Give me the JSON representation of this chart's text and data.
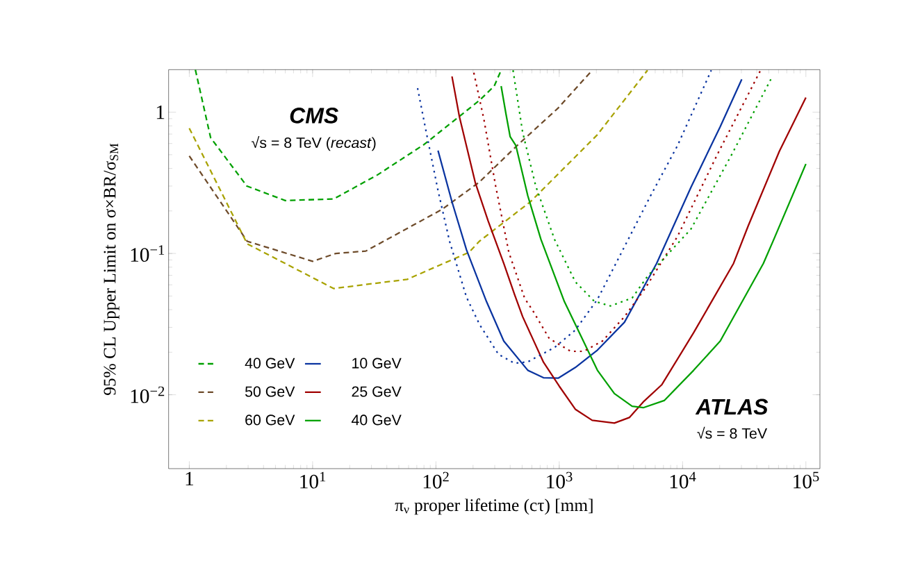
{
  "chart_data": {
    "type": "line",
    "log": "xy",
    "xlabel": "π$_{ν}$ proper lifetime (cτ) [mm]",
    "ylabel": "95% CL Upper Limit on σ×BR/σ$_{SM}$",
    "xlim": [
      0.68,
      130000
    ],
    "ylim": [
      0.003,
      2
    ],
    "xticks": [
      1,
      {
        "value": 10,
        "label": "10$^{1}$"
      },
      {
        "value": 100,
        "label": "10$^{2}$"
      },
      {
        "value": 1000,
        "label": "10$^{3}$"
      },
      {
        "value": 10000,
        "label": "10$^{4}$"
      },
      {
        "value": 100000,
        "label": "10$^{5}$"
      }
    ],
    "yticks": [
      {
        "value": 0.01,
        "label": "10$^{−2}$"
      },
      {
        "value": 0.1,
        "label": "10$^{−1}$"
      },
      1
    ],
    "legend": "bottom left",
    "annotations": [
      "CMS",
      "√s = 8 TeV (*recast*)",
      "ATLAS",
      "√s = 8 TeV"
    ],
    "series": [
      {
        "name": "40 GeV",
        "color": "#00a000",
        "line_style": "dashed",
        "x": [
          1.12,
          1.49,
          2.93,
          6.0,
          14.8,
          33.6,
          80,
          225,
          297,
          338
        ],
        "values": [
          2.0,
          0.66,
          0.3,
          0.237,
          0.243,
          0.36,
          0.59,
          1.21,
          1.53,
          1.98
        ]
      },
      {
        "name": "50 GeV",
        "color": "#6e4b2a",
        "line_style": "dashed",
        "x": [
          1.0,
          2.95,
          10,
          15.4,
          27,
          112,
          225,
          455,
          980,
          1850
        ],
        "values": [
          0.49,
          0.122,
          0.088,
          0.1,
          0.104,
          0.205,
          0.32,
          0.58,
          1.07,
          1.98
        ]
      },
      {
        "name": "60 GeV",
        "color": "#a8a200",
        "line_style": "dashed",
        "x": [
          1.0,
          2.95,
          14.8,
          58.5,
          186,
          225,
          583,
          2030,
          5200
        ],
        "values": [
          0.77,
          0.117,
          0.0565,
          0.0656,
          0.102,
          0.122,
          0.232,
          0.69,
          1.98
        ]
      },
      {
        "name": "10 GeV",
        "color": "#0a34a0",
        "line_style": "solid",
        "x": [
          104,
          135,
          177,
          257,
          355,
          556,
          745,
          980,
          1350,
          2040,
          3380,
          6160,
          11700,
          20200,
          30200
        ],
        "values": [
          0.535,
          0.232,
          0.106,
          0.0457,
          0.024,
          0.0149,
          0.0132,
          0.0131,
          0.0156,
          0.0207,
          0.0326,
          0.085,
          0.294,
          0.79,
          1.71
        ]
      },
      {
        "name": "25 GeV",
        "color": "#a00000",
        "line_style": "solid",
        "x": [
          135,
          155,
          209,
          265,
          355,
          435,
          505,
          745,
          1000,
          1350,
          1850,
          2800,
          3700,
          4800,
          6800,
          12300,
          25900,
          34000,
          61000,
          100000
        ],
        "values": [
          1.79,
          0.93,
          0.315,
          0.17,
          0.085,
          0.051,
          0.0357,
          0.017,
          0.0115,
          0.0079,
          0.0066,
          0.0063,
          0.0069,
          0.0089,
          0.0118,
          0.0275,
          0.085,
          0.156,
          0.53,
          1.27
        ]
      },
      {
        "name": "40 GeV",
        "color": "#00a000",
        "line_style": "solid",
        "x": [
          338,
          370,
          400,
          445,
          556,
          710,
          1100,
          2040,
          2800,
          3900,
          4800,
          7100,
          12300,
          20200,
          45200,
          55000,
          100000
        ],
        "values": [
          1.53,
          0.97,
          0.67,
          0.58,
          0.256,
          0.126,
          0.0457,
          0.0149,
          0.0102,
          0.0083,
          0.0081,
          0.0091,
          0.0149,
          0.024,
          0.085,
          0.126,
          0.43
        ]
      },
      {
        "color": "#0a34a0",
        "line_style": "dotted",
        "x": [
          71,
          83,
          104,
          129,
          177,
          226,
          322,
          435,
          556,
          915,
          1350,
          2040,
          2880,
          5500,
          9100,
          17100
        ],
        "values": [
          1.48,
          0.74,
          0.279,
          0.122,
          0.049,
          0.0314,
          0.0193,
          0.0167,
          0.0171,
          0.0216,
          0.0287,
          0.0473,
          0.085,
          0.256,
          0.58,
          1.98
        ]
      },
      {
        "color": "#a00000",
        "line_style": "dotted",
        "x": [
          203,
          245,
          305,
          390,
          525,
          615,
          830,
          1240,
          1580,
          2240,
          3380,
          5000,
          9100,
          19100,
          42900
        ],
        "values": [
          1.9,
          0.89,
          0.3,
          0.102,
          0.048,
          0.039,
          0.025,
          0.0203,
          0.0203,
          0.024,
          0.0357,
          0.057,
          0.132,
          0.5,
          1.98
        ]
      },
      {
        "color": "#00a000",
        "line_style": "dotted",
        "x": [
          422,
          505,
          645,
          915,
          1350,
          1920,
          2600,
          3900,
          5200,
          11700,
          25000,
          52000
        ],
        "values": [
          1.98,
          0.72,
          0.3,
          0.126,
          0.063,
          0.046,
          0.0425,
          0.0484,
          0.069,
          0.149,
          0.5,
          1.71
        ]
      }
    ]
  }
}
